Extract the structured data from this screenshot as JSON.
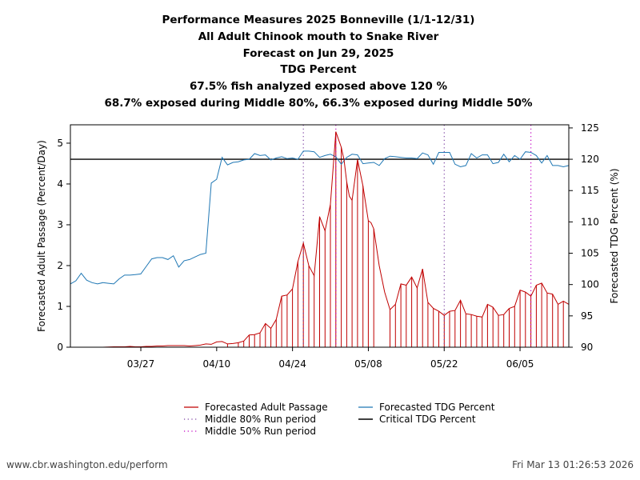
{
  "chart_data": {
    "type": "line",
    "title_lines": [
      "Performance Measures 2025 Bonneville (1/1-12/31)",
      "All Adult Chinook mouth to Snake River",
      "Forecast on Jun 29, 2025",
      "TDG Percent",
      "67.5% fish analyzed exposed above 120 %",
      "68.7% exposed during Middle 80%, 66.3% exposed during Middle 50%"
    ],
    "x_start": "2025-03-14",
    "x_end": "2025-06-14",
    "x_axis": {
      "range_days": [
        0,
        92
      ],
      "ticks": [
        {
          "day": 13,
          "label": "03/27"
        },
        {
          "day": 27,
          "label": "04/10"
        },
        {
          "day": 41,
          "label": "04/24"
        },
        {
          "day": 55,
          "label": "05/08"
        },
        {
          "day": 69,
          "label": "05/22"
        },
        {
          "day": 83,
          "label": "06/05"
        }
      ]
    },
    "y_left": {
      "label": "Forecasted Adult Passage (Percent/Day)",
      "range": [
        0,
        5.45
      ],
      "ticks": [
        {
          "value": 0,
          "label": "0"
        },
        {
          "value": 1,
          "label": "1"
        },
        {
          "value": 2,
          "label": "2"
        },
        {
          "value": 3,
          "label": "3"
        },
        {
          "value": 4,
          "label": "4"
        },
        {
          "value": 5,
          "label": "5"
        }
      ]
    },
    "y_right": {
      "label": "Forecasted TDG Percent (%)",
      "range": [
        90,
        125.5
      ],
      "ticks": [
        {
          "value": 90,
          "label": "90"
        },
        {
          "value": 95,
          "label": "95"
        },
        {
          "value": 100,
          "label": "100"
        },
        {
          "value": 105,
          "label": "105"
        },
        {
          "value": 110,
          "label": "110"
        },
        {
          "value": 115,
          "label": "115"
        },
        {
          "value": 120,
          "label": "120"
        },
        {
          "value": 125,
          "label": "125"
        }
      ]
    },
    "series": [
      {
        "name": "Forecasted Adult Passage",
        "axis": "left",
        "color": "#c00000",
        "style": "line-with-drops",
        "x": [
          4,
          6,
          8,
          10,
          11,
          12,
          13,
          14,
          15,
          16,
          17,
          18,
          19,
          20,
          21,
          22,
          23,
          24,
          25,
          26,
          27,
          28,
          29,
          30,
          31,
          32,
          33,
          34,
          35,
          36,
          37,
          38,
          39,
          40,
          41,
          42,
          43,
          44,
          45,
          46,
          47,
          48,
          49,
          50,
          50.5,
          51,
          51.5,
          52,
          53,
          54,
          55,
          55.5,
          56,
          57,
          58,
          59,
          60,
          61,
          62,
          63,
          64,
          65,
          66,
          67,
          68,
          69,
          70,
          71,
          72,
          73,
          74,
          75,
          76,
          77,
          78,
          79,
          80,
          81,
          82,
          83,
          84,
          85,
          86,
          87,
          88,
          89,
          90,
          91,
          92
        ],
        "values": [
          0,
          0,
          0.01,
          0.01,
          0.02,
          0.01,
          0.01,
          0.02,
          0.02,
          0.03,
          0.03,
          0.04,
          0.04,
          0.04,
          0.04,
          0.03,
          0.04,
          0.05,
          0.08,
          0.07,
          0.13,
          0.14,
          0.08,
          0.09,
          0.11,
          0.15,
          0.3,
          0.31,
          0.35,
          0.58,
          0.46,
          0.68,
          1.25,
          1.28,
          1.43,
          2.1,
          2.55,
          2.0,
          1.75,
          3.2,
          2.85,
          3.5,
          5.28,
          4.9,
          4.6,
          4.05,
          3.7,
          3.6,
          4.6,
          3.95,
          3.1,
          3.05,
          2.9,
          2.0,
          1.35,
          0.92,
          1.05,
          1.55,
          1.52,
          1.72,
          1.45,
          1.92,
          1.1,
          0.95,
          0.88,
          0.78,
          0.88,
          0.9,
          1.15,
          0.82,
          0.8,
          0.76,
          0.74,
          1.05,
          0.98,
          0.78,
          0.8,
          0.95,
          1.0,
          1.4,
          1.35,
          1.25,
          1.52,
          1.57,
          1.33,
          1.3,
          1.05,
          1.13,
          1.05
        ],
        "drop_x": [
          29,
          31,
          32,
          33,
          34,
          35,
          36,
          37,
          38,
          39,
          40,
          41,
          42,
          43,
          44,
          45,
          46,
          47,
          48,
          49,
          50,
          51,
          52,
          53,
          54,
          55,
          56,
          59,
          60,
          61,
          62,
          63,
          64,
          65,
          66,
          67,
          68,
          69,
          70,
          71,
          72,
          73,
          74,
          75,
          76,
          77,
          78,
          79,
          80,
          81,
          82,
          83,
          84,
          85,
          86,
          87,
          88,
          89,
          90,
          91
        ]
      },
      {
        "name": "Forecasted TDG Percent",
        "axis": "right",
        "color": "#1f77b4",
        "style": "line",
        "x": [
          0,
          1,
          2,
          3,
          4,
          5,
          6,
          7,
          8,
          9,
          10,
          11,
          12,
          13,
          14,
          15,
          16,
          17,
          18,
          19,
          20,
          21,
          22,
          23,
          24,
          25,
          26,
          27,
          28,
          29,
          30,
          31,
          32,
          33,
          34,
          35,
          36,
          37,
          38,
          39,
          40,
          41,
          42,
          43,
          44,
          45,
          46,
          47,
          48,
          49,
          50,
          51,
          52,
          53,
          54,
          55,
          56,
          57,
          58,
          59,
          60,
          61,
          62,
          63,
          64,
          65,
          66,
          67,
          68,
          69,
          70,
          71,
          72,
          73,
          74,
          75,
          76,
          77,
          78,
          79,
          80,
          81,
          82,
          83,
          84,
          85,
          86,
          87,
          88,
          89,
          90,
          91,
          92
        ],
        "values": [
          100.1,
          100.6,
          101.8,
          100.7,
          100.3,
          100.1,
          100.3,
          100.2,
          100.1,
          100.9,
          101.5,
          101.5,
          101.6,
          101.7,
          102.9,
          104.1,
          104.3,
          104.3,
          104.0,
          104.6,
          102.8,
          103.8,
          104.0,
          104.4,
          104.8,
          105.0,
          116.2,
          116.8,
          120.3,
          119.1,
          119.5,
          119.6,
          119.9,
          120.0,
          120.9,
          120.6,
          120.7,
          119.9,
          120.2,
          120.4,
          120.1,
          120.2,
          120.0,
          121.3,
          121.3,
          121.2,
          120.3,
          120.6,
          120.8,
          120.4,
          119.2,
          120.3,
          120.8,
          120.7,
          119.3,
          119.4,
          119.5,
          119.0,
          120.1,
          120.5,
          120.4,
          120.3,
          120.2,
          120.2,
          120.1,
          121.0,
          120.7,
          119.2,
          121.1,
          121.1,
          121.1,
          119.2,
          118.8,
          119.0,
          120.9,
          120.2,
          120.7,
          120.7,
          119.3,
          119.5,
          120.8,
          119.6,
          120.6,
          120.0,
          121.2,
          121.1,
          120.6,
          119.4,
          120.6,
          119.0,
          119.0,
          118.8,
          119.0
        ]
      },
      {
        "name": "Critical TDG Percent",
        "axis": "right",
        "color": "#000000",
        "style": "hline",
        "value": 120
      }
    ],
    "middle_80_run_period": {
      "label": "Middle 80% Run period",
      "color": "#7b3fa0",
      "x": [
        43,
        69
      ]
    },
    "middle_50_run_period": {
      "label": "Middle 50% Run period",
      "color": "#c000c0",
      "x": [
        49,
        85
      ]
    },
    "legend": {
      "placement": "bottom",
      "items": [
        {
          "label": "Forecasted Adult Passage",
          "kind": "line",
          "color": "#c00000"
        },
        {
          "label": "Forecasted TDG Percent",
          "kind": "line",
          "color": "#1f77b4"
        },
        {
          "label": "Middle 80% Run period",
          "kind": "dotted",
          "color": "#7b3fa0"
        },
        {
          "label": "Critical TDG Percent",
          "kind": "line",
          "color": "#000000"
        },
        {
          "label": "Middle 50% Run period",
          "kind": "dotted",
          "color": "#c000c0"
        }
      ]
    }
  },
  "footer": {
    "source": "www.cbr.washington.edu/perform",
    "timestamp": "Fri Mar 13 01:26:53 2026"
  }
}
